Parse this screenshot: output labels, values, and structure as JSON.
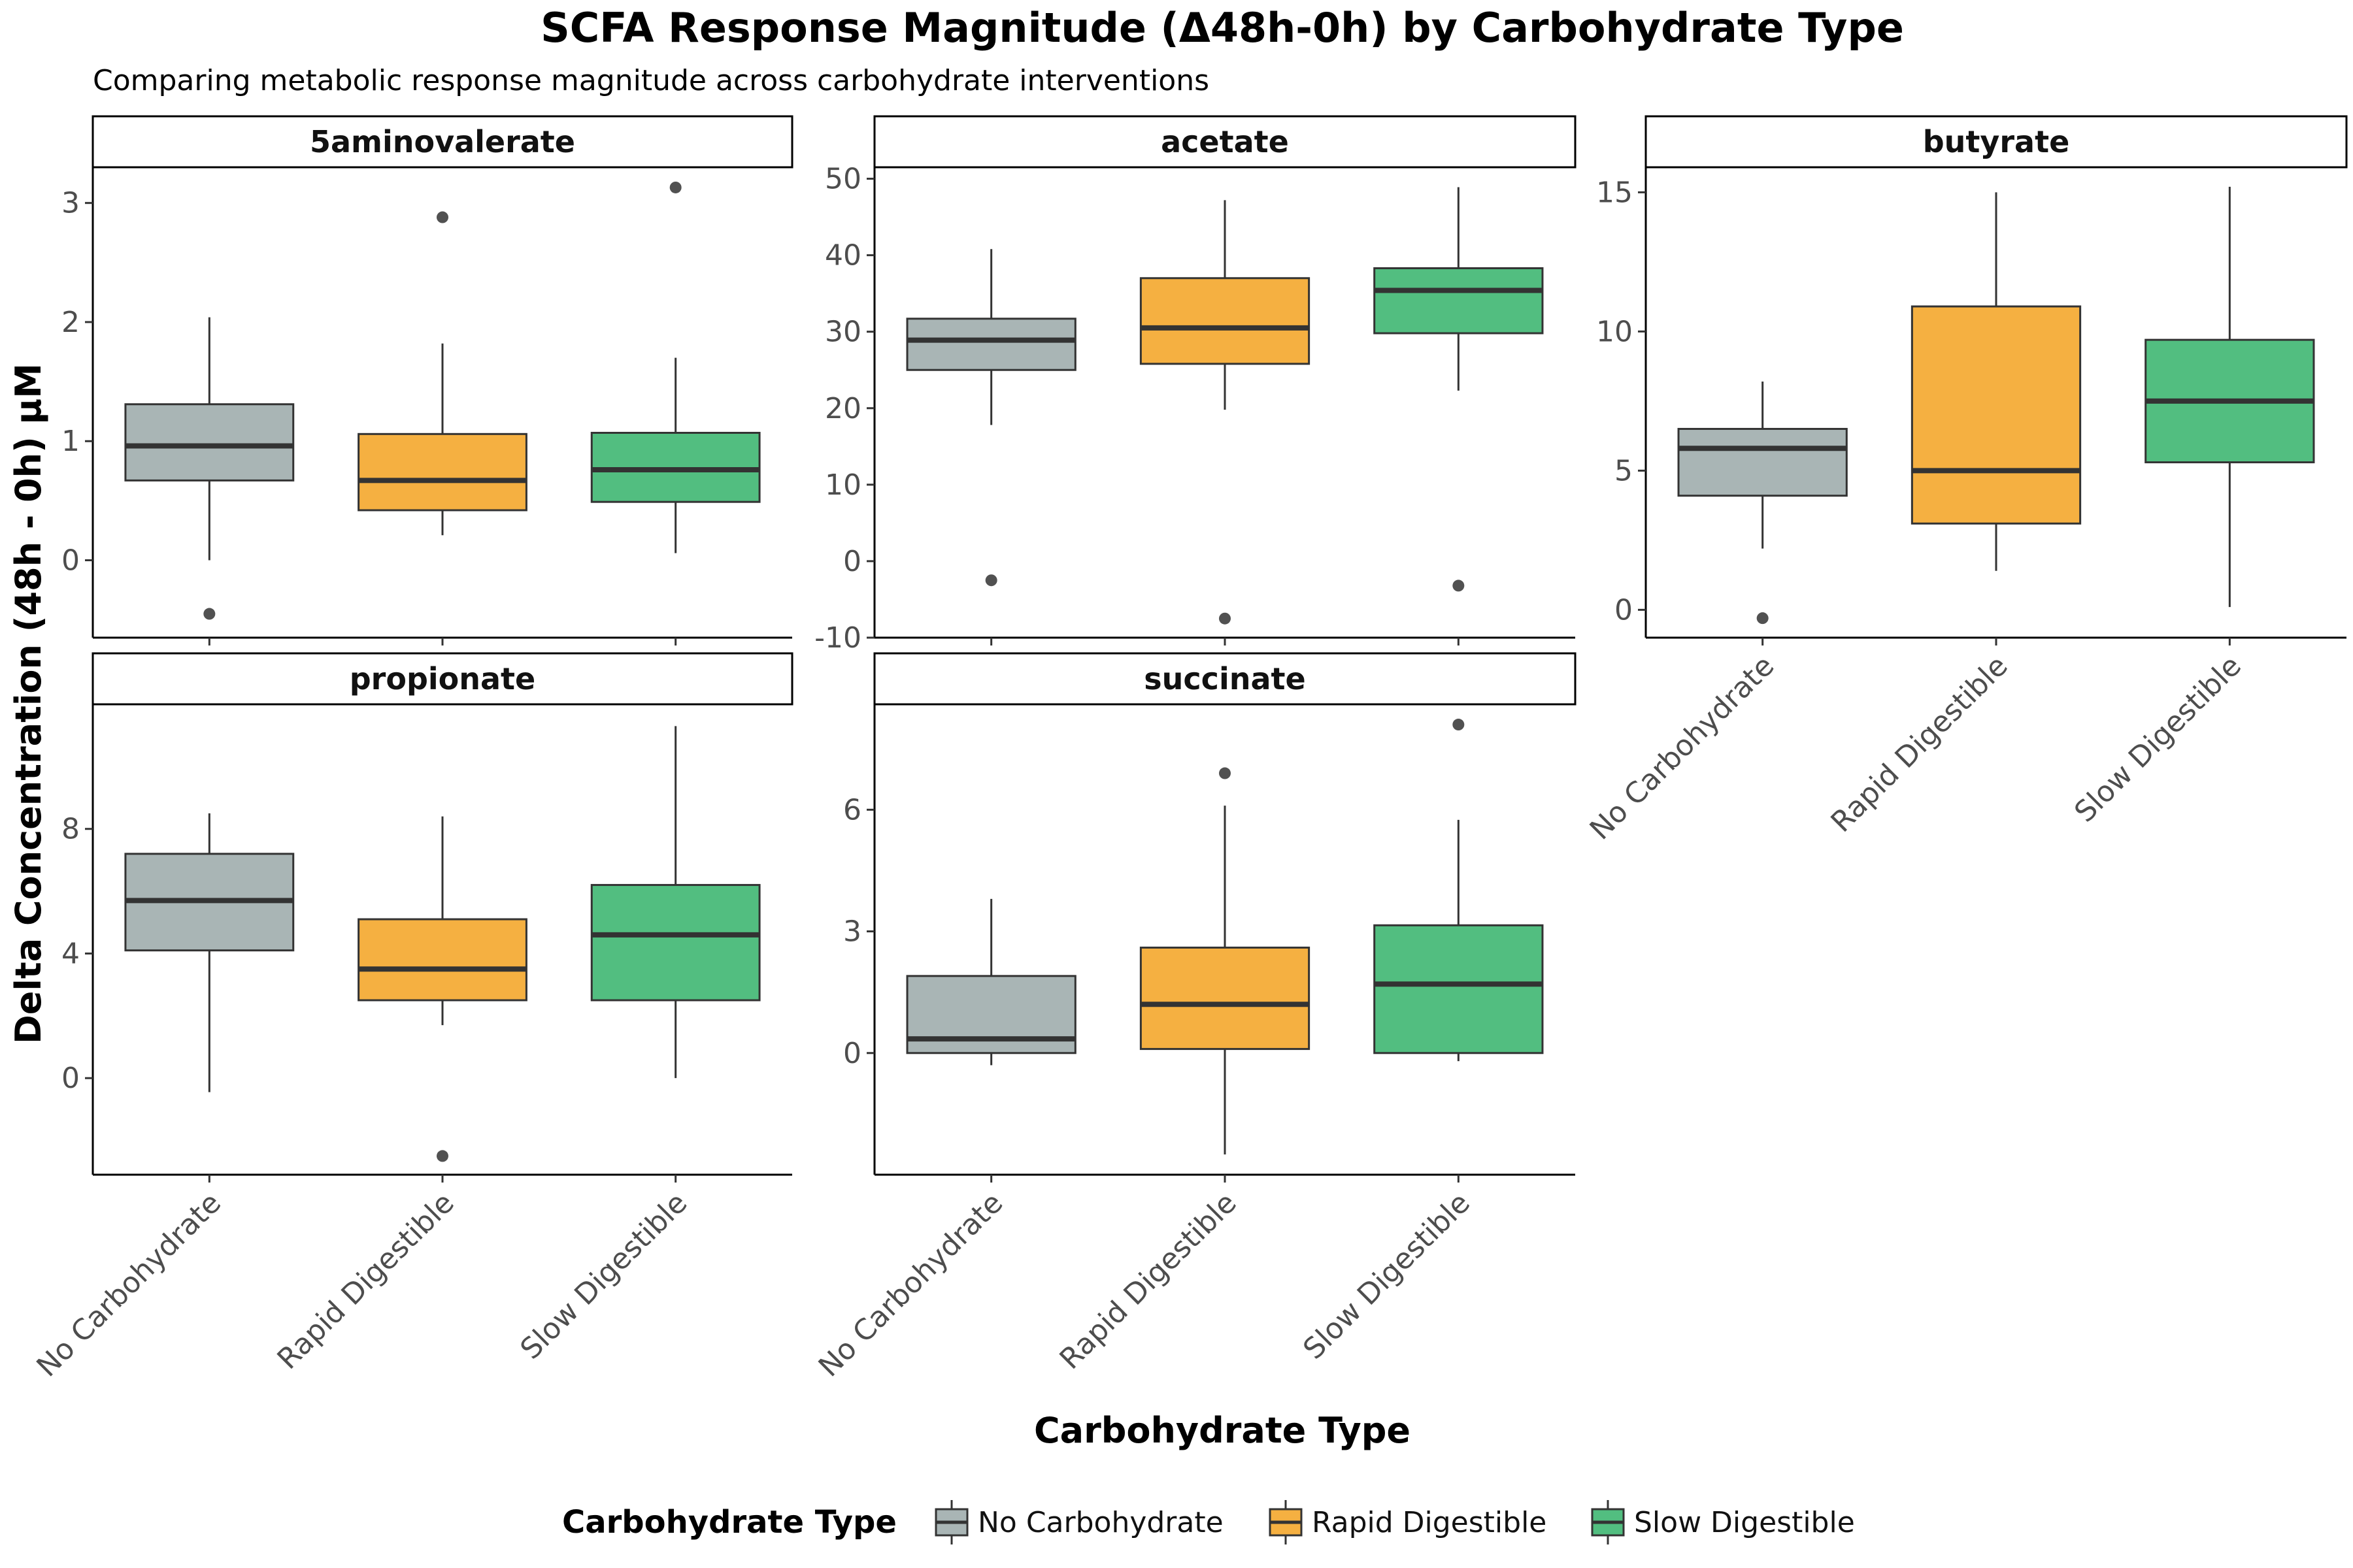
{
  "chart_data": {
    "type": "box",
    "title": "SCFA Response Magnitude (Δ48h-0h) by Carbohydrate Type",
    "subtitle": "Comparing metabolic response magnitude across carbohydrate interventions",
    "xlabel": "Carbohydrate Type",
    "ylabel": "Delta Concentration (48h - 0h) µM",
    "categories": [
      "No Carbohydrate",
      "Rapid Digestible",
      "Slow Digestible"
    ],
    "colors": {
      "No Carbohydrate": "#A9B5B5",
      "Rapid Digestible": "#F5B041",
      "Slow Digestible": "#52BE80"
    },
    "legend": {
      "title": "Carbohydrate Type",
      "position": "bottom",
      "items": [
        "No Carbohydrate",
        "Rapid Digestible",
        "Slow Digestible"
      ]
    },
    "grid": false,
    "panels": [
      {
        "name": "5aminovalerate",
        "ylim": [
          -0.65,
          3.3
        ],
        "yticks": [
          0,
          1,
          2,
          3
        ],
        "boxes": [
          {
            "category": "No Carbohydrate",
            "min": 0.0,
            "q1": 0.67,
            "median": 0.96,
            "q3": 1.31,
            "max": 2.04,
            "outliers": [
              -0.45
            ]
          },
          {
            "category": "Rapid Digestible",
            "min": 0.21,
            "q1": 0.42,
            "median": 0.67,
            "q3": 1.06,
            "max": 1.82,
            "outliers": [
              2.88
            ]
          },
          {
            "category": "Slow Digestible",
            "min": 0.06,
            "q1": 0.49,
            "median": 0.76,
            "q3": 1.07,
            "max": 1.7,
            "outliers": [
              3.13
            ]
          }
        ]
      },
      {
        "name": "acetate",
        "ylim": [
          -10,
          51.5
        ],
        "yticks": [
          -10,
          0,
          10,
          20,
          30,
          40,
          50
        ],
        "boxes": [
          {
            "category": "No Carbohydrate",
            "min": 17.8,
            "q1": 25.0,
            "median": 28.9,
            "q3": 31.7,
            "max": 40.8,
            "outliers": [
              -2.5
            ]
          },
          {
            "category": "Rapid Digestible",
            "min": 19.8,
            "q1": 25.8,
            "median": 30.5,
            "q3": 37.0,
            "max": 47.2,
            "outliers": [
              -7.5
            ]
          },
          {
            "category": "Slow Digestible",
            "min": 22.3,
            "q1": 29.8,
            "median": 35.4,
            "q3": 38.3,
            "max": 48.9,
            "outliers": [
              -3.2
            ]
          }
        ]
      },
      {
        "name": "butyrate",
        "ylim": [
          -1.0,
          15.9
        ],
        "yticks": [
          0,
          5,
          10,
          15
        ],
        "boxes": [
          {
            "category": "No Carbohydrate",
            "min": 2.2,
            "q1": 4.1,
            "median": 5.8,
            "q3": 6.5,
            "max": 8.2,
            "outliers": [
              -0.3
            ]
          },
          {
            "category": "Rapid Digestible",
            "min": 1.4,
            "q1": 3.1,
            "median": 5.0,
            "q3": 10.9,
            "max": 15.0,
            "outliers": []
          },
          {
            "category": "Slow Digestible",
            "min": 0.1,
            "q1": 5.3,
            "median": 7.5,
            "q3": 9.7,
            "max": 15.2,
            "outliers": []
          }
        ]
      },
      {
        "name": "propionate",
        "ylim": [
          -3.1,
          12.0
        ],
        "yticks": [
          0,
          4,
          8
        ],
        "boxes": [
          {
            "category": "No Carbohydrate",
            "min": -0.45,
            "q1": 4.1,
            "median": 5.7,
            "q3": 7.2,
            "max": 8.5,
            "outliers": []
          },
          {
            "category": "Rapid Digestible",
            "min": 1.7,
            "q1": 2.5,
            "median": 3.5,
            "q3": 5.1,
            "max": 8.4,
            "outliers": [
              -2.5
            ]
          },
          {
            "category": "Slow Digestible",
            "min": 0.0,
            "q1": 2.5,
            "median": 4.6,
            "q3": 6.2,
            "max": 11.3,
            "outliers": []
          }
        ]
      },
      {
        "name": "succinate",
        "ylim": [
          -3.0,
          8.6
        ],
        "yticks": [
          0,
          3,
          6
        ],
        "boxes": [
          {
            "category": "No Carbohydrate",
            "min": -0.3,
            "q1": 0.0,
            "median": 0.35,
            "q3": 1.9,
            "max": 3.8,
            "outliers": []
          },
          {
            "category": "Rapid Digestible",
            "min": -2.5,
            "q1": 0.1,
            "median": 1.2,
            "q3": 2.6,
            "max": 6.1,
            "outliers": [
              6.9
            ]
          },
          {
            "category": "Slow Digestible",
            "min": -0.2,
            "q1": 0.0,
            "median": 1.7,
            "q3": 3.15,
            "max": 5.75,
            "outliers": [
              8.1
            ]
          }
        ]
      }
    ]
  }
}
